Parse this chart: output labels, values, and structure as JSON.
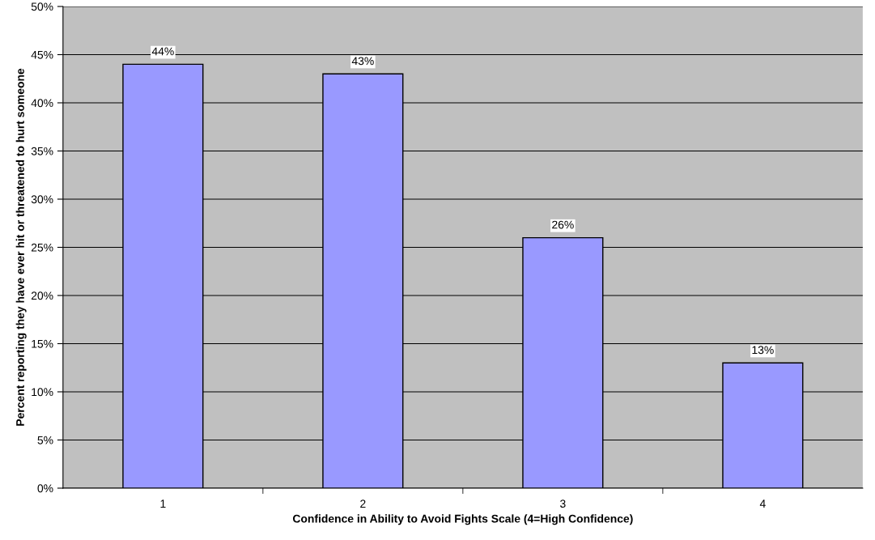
{
  "chart_data": {
    "type": "bar",
    "xlabel": "Confidence in Ability to Avoid Fights Scale (4=High Confidence)",
    "ylabel": "Percent reporting they have ever hit or threatened to hurt someone",
    "categories": [
      "1",
      "2",
      "3",
      "4"
    ],
    "values": [
      44,
      43,
      26,
      13
    ],
    "value_labels": [
      "44%",
      "43%",
      "26%",
      "13%"
    ],
    "color": "#9999ff",
    "ylim": [
      0,
      50
    ],
    "yticks": [
      {
        "value": 0,
        "label": "0%"
      },
      {
        "value": 5,
        "label": "5%"
      },
      {
        "value": 10,
        "label": "10%"
      },
      {
        "value": 15,
        "label": "15%"
      },
      {
        "value": 20,
        "label": "20%"
      },
      {
        "value": 25,
        "label": "25%"
      },
      {
        "value": 30,
        "label": "30%"
      },
      {
        "value": 35,
        "label": "35%"
      },
      {
        "value": 40,
        "label": "40%"
      },
      {
        "value": 45,
        "label": "45%"
      },
      {
        "value": 50,
        "label": "50%"
      }
    ],
    "grid": "y",
    "legend": false
  }
}
